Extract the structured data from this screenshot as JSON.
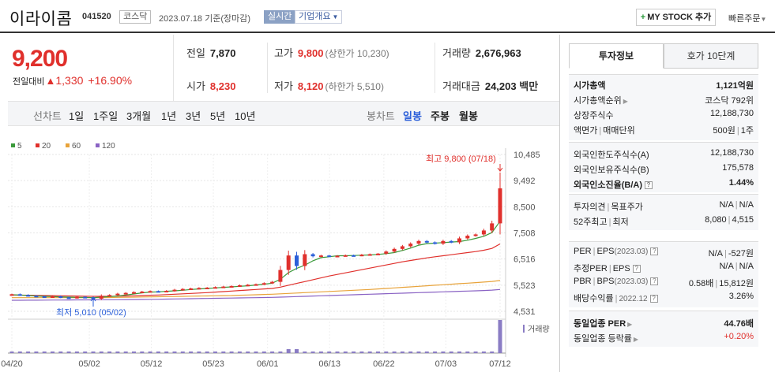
{
  "header": {
    "name": "이라이콤",
    "code": "041520",
    "market": "코스닥",
    "date_text": "2023.07.18  기준(장마감)",
    "realtime_label": "실시간",
    "company_info_label": "기업개요",
    "mystock_label": "MY STOCK 추가",
    "quick_order_label": "빠른주문"
  },
  "price": {
    "current": "9,200",
    "change_label": "전일대비",
    "change_arrow": "▲",
    "change": "1,330",
    "change_pct": "+16.90%"
  },
  "summary": {
    "prev_close": {
      "label": "전일",
      "value": "7,870"
    },
    "high": {
      "label": "고가",
      "value": "9,800",
      "sub": "(상한가 10,230)"
    },
    "volume": {
      "label": "거래량",
      "value": "2,676,963"
    },
    "open": {
      "label": "시가",
      "value": "8,230"
    },
    "low": {
      "label": "저가",
      "value": "8,120",
      "sub": "(하한가 5,510)"
    },
    "amount": {
      "label": "거래대금",
      "value": "24,203",
      "unit": "백만"
    }
  },
  "period_tabs": {
    "line_label": "선차트",
    "line": [
      "1일",
      "1주일",
      "3개월",
      "1년",
      "3년",
      "5년",
      "10년"
    ],
    "candle_label": "봉차트",
    "candle": [
      "일봉",
      "주봉",
      "월봉"
    ],
    "active_candle": "일봉"
  },
  "chart_data": {
    "type": "candlestick",
    "legend": [
      {
        "name": "5",
        "color": "#3a9a3a"
      },
      {
        "name": "20",
        "color": "#e0302c"
      },
      {
        "name": "60",
        "color": "#e8a33a"
      },
      {
        "name": "120",
        "color": "#8a63c4"
      }
    ],
    "y_ticks": [
      "10,485",
      "9,492",
      "8,500",
      "7,508",
      "6,516",
      "5,523",
      "4,531"
    ],
    "ylim": [
      4531,
      10485
    ],
    "x_ticks": [
      "04/20",
      "05/02",
      "05/12",
      "05/23",
      "06/01",
      "06/13",
      "06/22",
      "07/03",
      "07/12"
    ],
    "high_annotation": "최고 9,800 (07/18)",
    "low_annotation": "최저 5,010 (05/02)",
    "volume_label": "거래량",
    "candles_close": [
      5180,
      5150,
      5120,
      5100,
      5090,
      5100,
      5060,
      5040,
      5080,
      5060,
      5010,
      5120,
      5150,
      5200,
      5230,
      5260,
      5280,
      5300,
      5290,
      5310,
      5350,
      5380,
      5400,
      5420,
      5430,
      5450,
      5470,
      5490,
      5520,
      5540,
      5560,
      5600,
      5650,
      6100,
      6650,
      6250,
      6700,
      6620,
      6650,
      6630,
      6640,
      6660,
      6650,
      6680,
      6700,
      6720,
      6800,
      6900,
      7000,
      7100,
      7200,
      7150,
      7100,
      7200,
      7150,
      7300,
      7400,
      7450,
      7600,
      7870,
      9200
    ],
    "ma5": [
      5160,
      5150,
      5130,
      5110,
      5100,
      5090,
      5080,
      5070,
      5060,
      5060,
      5050,
      5070,
      5090,
      5110,
      5150,
      5190,
      5230,
      5260,
      5270,
      5290,
      5310,
      5330,
      5360,
      5380,
      5400,
      5420,
      5440,
      5460,
      5480,
      5500,
      5530,
      5560,
      5600,
      5750,
      6000,
      6160,
      6280,
      6450,
      6570,
      6600,
      6640,
      6640,
      6650,
      6660,
      6670,
      6690,
      6720,
      6760,
      6840,
      6930,
      7040,
      7100,
      7120,
      7140,
      7160,
      7180,
      7230,
      7300,
      7380,
      7520,
      7950
    ],
    "ma20": [
      5150,
      5145,
      5140,
      5135,
      5130,
      5125,
      5120,
      5115,
      5110,
      5105,
      5100,
      5100,
      5100,
      5105,
      5110,
      5120,
      5130,
      5140,
      5150,
      5165,
      5180,
      5195,
      5210,
      5225,
      5240,
      5260,
      5280,
      5300,
      5320,
      5340,
      5360,
      5380,
      5400,
      5450,
      5520,
      5590,
      5660,
      5730,
      5800,
      5870,
      5930,
      5990,
      6050,
      6110,
      6170,
      6230,
      6290,
      6350,
      6410,
      6460,
      6510,
      6560,
      6600,
      6640,
      6680,
      6720,
      6760,
      6800,
      6850,
      6920,
      7090
    ],
    "ma60": [
      5050,
      5050,
      5050,
      5050,
      5050,
      5050,
      5050,
      5050,
      5050,
      5050,
      5050,
      5050,
      5055,
      5060,
      5065,
      5070,
      5075,
      5080,
      5085,
      5090,
      5095,
      5100,
      5105,
      5110,
      5115,
      5120,
      5125,
      5130,
      5140,
      5150,
      5160,
      5170,
      5180,
      5195,
      5210,
      5225,
      5240,
      5255,
      5270,
      5285,
      5300,
      5315,
      5330,
      5345,
      5360,
      5380,
      5400,
      5420,
      5440,
      5460,
      5480,
      5500,
      5520,
      5540,
      5560,
      5580,
      5600,
      5620,
      5640,
      5665,
      5700
    ],
    "ma120": [
      4950,
      4950,
      4952,
      4954,
      4956,
      4958,
      4960,
      4962,
      4964,
      4966,
      4968,
      4970,
      4972,
      4975,
      4978,
      4981,
      4984,
      4987,
      4990,
      4995,
      5000,
      5005,
      5010,
      5015,
      5020,
      5025,
      5030,
      5035,
      5040,
      5045,
      5050,
      5055,
      5060,
      5070,
      5080,
      5090,
      5100,
      5110,
      5120,
      5130,
      5140,
      5150,
      5160,
      5170,
      5180,
      5190,
      5200,
      5210,
      5220,
      5230,
      5240,
      5250,
      5260,
      5270,
      5280,
      5290,
      5300,
      5310,
      5320,
      5335,
      5360
    ]
  },
  "invest_tabs": {
    "tab1": "투자정보",
    "tab2": "호가 10단계"
  },
  "invest": {
    "market_cap": {
      "label": "시가총액",
      "value": "1,121억원"
    },
    "market_cap_rank": {
      "label": "시가총액순위",
      "value": "코스닥 792위"
    },
    "shares": {
      "label": "상장주식수",
      "value": "12,188,730"
    },
    "par_label_1": "액면가",
    "par_label_2": "매매단위",
    "par_value_1": "500원",
    "par_value_2": "1주",
    "foreign_limit": {
      "label": "외국인한도주식수(A)",
      "value": "12,188,730"
    },
    "foreign_hold": {
      "label": "외국인보유주식수(B)",
      "value": "175,578"
    },
    "foreign_ratio": {
      "label": "외국인소진율(B/A)",
      "value": "1.44%"
    },
    "opinion_label_1": "투자의견",
    "opinion_label_2": "목표주가",
    "opinion_value_1": "N/A",
    "opinion_value_2": "N/A",
    "w52_label_1": "52주최고",
    "w52_label_2": "최저",
    "w52_value_1": "8,080",
    "w52_value_2": "4,515",
    "per_label_1": "PER",
    "per_label_2": "EPS",
    "per_sub": "(2023.03)",
    "per_value_1": "N/A",
    "per_value_2": "-527원",
    "est_label_1": "추정PER",
    "est_label_2": "EPS",
    "est_value_1": "N/A",
    "est_value_2": "N/A",
    "pbr_label_1": "PBR",
    "pbr_label_2": "BPS",
    "pbr_sub": "(2023.03)",
    "pbr_value_1": "0.58배",
    "pbr_value_2": "15,812원",
    "div_label": "배당수익률",
    "div_sub": "2022.12",
    "div_value": "3.26%",
    "sector_per": {
      "label": "동일업종 PER",
      "value": "44.76배"
    },
    "sector_rate": {
      "label": "동일업종 등락률",
      "value": "+0.20%"
    }
  }
}
